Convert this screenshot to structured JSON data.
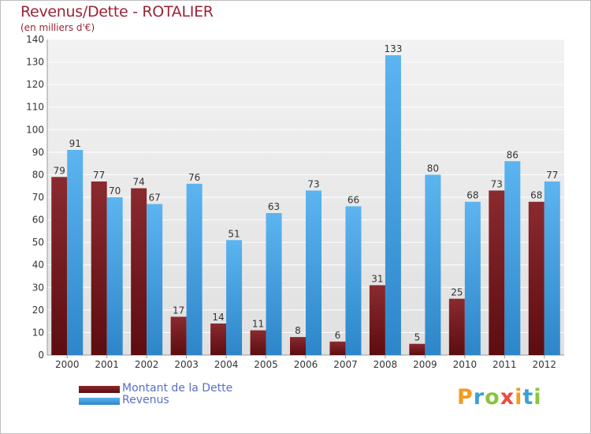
{
  "chart_data": {
    "type": "bar",
    "title": "Revenus/Dette - ROTALIER",
    "subtitle": "(en milliers d'€)",
    "categories": [
      "2000",
      "2001",
      "2002",
      "2003",
      "2004",
      "2005",
      "2006",
      "2007",
      "2008",
      "2009",
      "2010",
      "2011",
      "2012"
    ],
    "series": [
      {
        "name": "Montant de la Dette",
        "color": "#7a1a1f",
        "values": [
          79,
          77,
          74,
          17,
          14,
          11,
          8,
          6,
          31,
          5,
          25,
          73,
          68
        ]
      },
      {
        "name": "Revenus",
        "color": "#4fa8e8",
        "values": [
          91,
          70,
          67,
          76,
          51,
          63,
          73,
          66,
          133,
          80,
          68,
          86,
          77
        ]
      }
    ],
    "ylim": [
      0,
      140
    ],
    "yticks": [
      0,
      10,
      20,
      30,
      40,
      50,
      60,
      70,
      80,
      90,
      100,
      110,
      120,
      130,
      140
    ],
    "grid": true,
    "legend_position": "bottom-left"
  },
  "logo": {
    "text": "Proxiti",
    "letters": [
      "P",
      "r",
      "o",
      "x",
      "i",
      "t",
      "i"
    ],
    "colors": [
      "#f39c1f",
      "#3aa1d8",
      "#8ac43f",
      "#e84c3d",
      "#f39c1f",
      "#3aa1d8",
      "#8ac43f"
    ]
  }
}
